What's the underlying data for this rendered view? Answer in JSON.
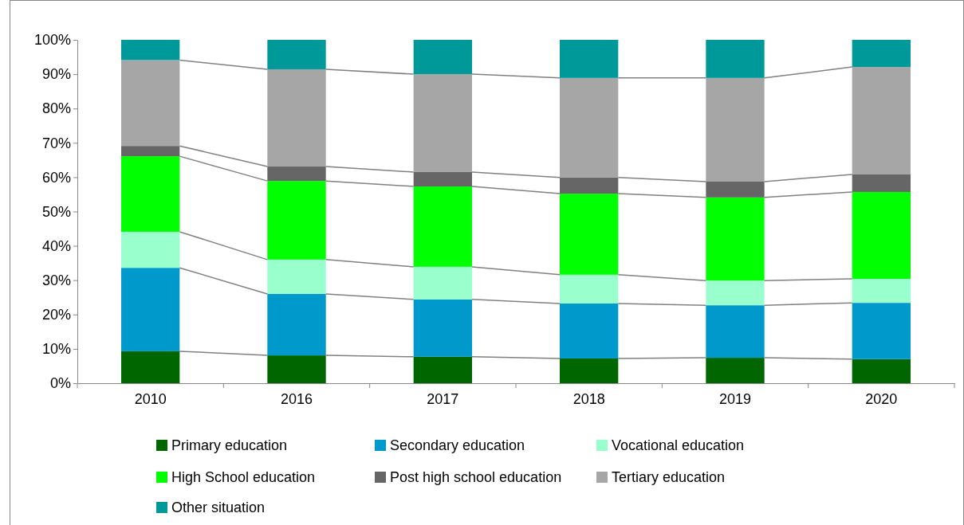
{
  "chart_data": {
    "type": "bar",
    "stacked": true,
    "categories": [
      "2010",
      "2016",
      "2017",
      "2018",
      "2019",
      "2020"
    ],
    "series": [
      {
        "name": "Primary education",
        "color": "#006600",
        "values": [
          9.3,
          8.1,
          7.7,
          7.2,
          7.4,
          7
        ]
      },
      {
        "name": "Secondary education",
        "color": "#0099cc",
        "values": [
          24.3,
          17.9,
          16.7,
          16,
          15.3,
          16.4
        ]
      },
      {
        "name": "Vocational education",
        "color": "#99ffcc",
        "values": [
          10.5,
          10,
          9.5,
          8.4,
          7.2,
          7
        ]
      },
      {
        "name": "High School education",
        "color": "#00ff00",
        "values": [
          22,
          22.9,
          23.4,
          23.6,
          24.2,
          25.3
        ]
      },
      {
        "name": "Post high school education",
        "color": "#666666",
        "values": [
          3,
          4.2,
          4.2,
          4.7,
          4.6,
          5.1
        ]
      },
      {
        "name": "Tertiary education",
        "color": "#a6a6a6",
        "values": [
          25,
          28.3,
          28.5,
          29,
          30.2,
          31.3
        ]
      },
      {
        "name": "Other situation",
        "color": "#009999",
        "values": [
          5.9,
          8.6,
          10,
          11.1,
          11.1,
          7.9
        ]
      }
    ],
    "ylim": [
      0,
      100
    ],
    "yticks": [
      {
        "value": 0,
        "label": "0%"
      },
      {
        "value": 10,
        "label": "10%"
      },
      {
        "value": 20,
        "label": "20%"
      },
      {
        "value": 30,
        "label": "30%"
      },
      {
        "value": 40,
        "label": "40%"
      },
      {
        "value": 50,
        "label": "50%"
      },
      {
        "value": 60,
        "label": "60%"
      },
      {
        "value": 70,
        "label": "70%"
      },
      {
        "value": 80,
        "label": "80%"
      },
      {
        "value": 90,
        "label": "90%"
      },
      {
        "value": 100,
        "label": "100%"
      }
    ],
    "grid": false,
    "legend": "bottom"
  }
}
